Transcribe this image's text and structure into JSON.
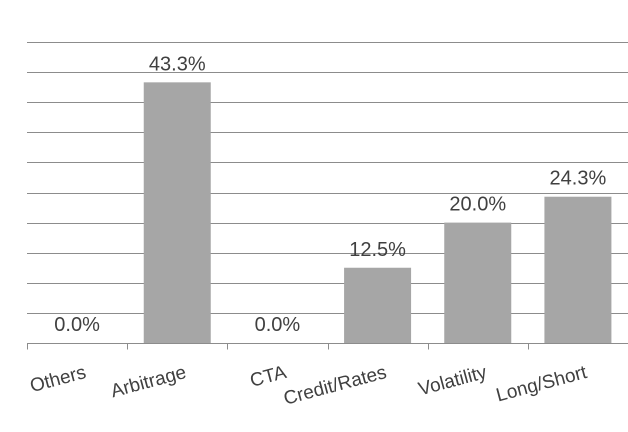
{
  "chart_data": {
    "type": "bar",
    "categories": [
      "Others",
      "Arbitrage",
      "CTA",
      "Credit/Rates",
      "Volatility",
      "Long/Short"
    ],
    "values": [
      0.0,
      43.3,
      0.0,
      12.5,
      20.0,
      24.3
    ],
    "data_labels": [
      "0.0%",
      "43.3%",
      "0.0%",
      "12.5%",
      "20.0%",
      "24.3%"
    ],
    "ylim": [
      0,
      50
    ],
    "grid": true,
    "legend": "none",
    "colors": {
      "bar": "#a6a6a6",
      "grid": "#8c8c8c",
      "text": "#404040"
    }
  }
}
